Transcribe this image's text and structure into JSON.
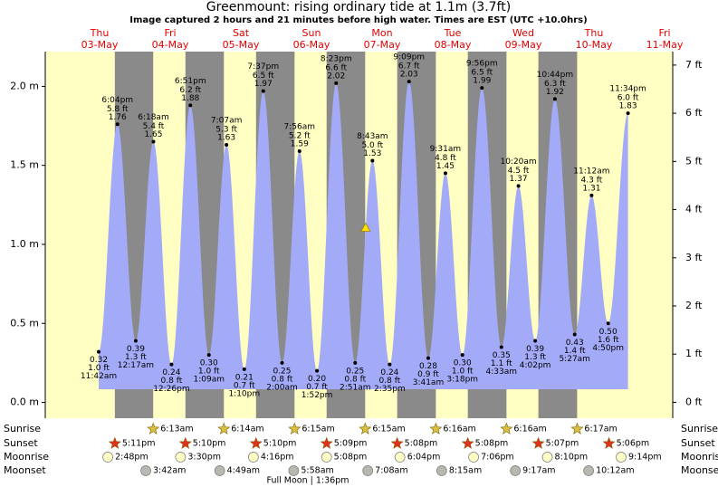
{
  "title": "Greenmount: rising  ordinary tide at 1.1m (3.7ft)",
  "subtitle": "Image captured 2 hours and 21 minutes before high water. Times are EST (UTC +10.0hrs)",
  "chart_data": {
    "type": "tide",
    "current_height_m": 1.1,
    "days": [
      {
        "weekday": "Thu",
        "date": "03-May"
      },
      {
        "weekday": "Fri",
        "date": "04-May"
      },
      {
        "weekday": "Sat",
        "date": "05-May"
      },
      {
        "weekday": "Sun",
        "date": "06-May"
      },
      {
        "weekday": "Mon",
        "date": "07-May"
      },
      {
        "weekday": "Tue",
        "date": "08-May"
      },
      {
        "weekday": "Wed",
        "date": "09-May"
      },
      {
        "weekday": "Thu",
        "date": "10-May"
      },
      {
        "weekday": "Fri",
        "date": "11-May"
      }
    ],
    "times": [
      "11:42am",
      "6:04pm",
      "12:17am",
      "6:18am",
      "12:26pm",
      "6:51pm",
      "1:09am",
      "7:07am",
      "1:10pm",
      "7:37pm",
      "2:00am",
      "7:56am",
      "1:52pm",
      "8:23pm",
      "2:51am",
      "8:43am",
      "2:35pm",
      "9:09pm",
      "3:41am",
      "9:31am",
      "3:18pm",
      "9:56pm",
      "4:33am",
      "10:20am",
      "4:02pm",
      "10:44pm",
      "5:27am",
      "11:12am",
      "4:50pm",
      "11:34pm"
    ],
    "values": [
      0.32,
      1.76,
      0.39,
      1.65,
      0.24,
      1.88,
      0.3,
      1.63,
      0.21,
      1.97,
      0.25,
      1.59,
      0.2,
      2.02,
      0.25,
      1.53,
      0.24,
      2.03,
      0.28,
      1.45,
      0.3,
      1.99,
      0.35,
      1.37,
      0.39,
      1.92,
      0.43,
      1.31,
      0.5,
      1.83
    ],
    "value_labels": [
      "0.32",
      "1.76",
      "0.39",
      "1.65",
      "0.24",
      "1.88",
      "0.30",
      "1.63",
      "0.21",
      "1.97",
      "0.25",
      "1.59",
      "0.20",
      "2.02",
      "0.25",
      "1.53",
      "0.24",
      "2.03",
      "0.28",
      "1.45",
      "0.30",
      "1.99",
      "0.35",
      "1.37",
      "0.39",
      "1.92",
      "0.43",
      "1.31",
      "0.50",
      "1.83"
    ],
    "ft_labels": [
      "1.0 ft",
      "5.8 ft",
      "1.3 ft",
      "5.4 ft",
      "0.8 ft",
      "6.2 ft",
      "1.0 ft",
      "5.3 ft",
      "0.7 ft",
      "6.5 ft",
      "0.8 ft",
      "5.2 ft",
      "0.7 ft",
      "6.6 ft",
      "0.8 ft",
      "5.0 ft",
      "0.8 ft",
      "6.7 ft",
      "0.9 ft",
      "4.8 ft",
      "1.0 ft",
      "6.5 ft",
      "1.1 ft",
      "4.5 ft",
      "1.3 ft",
      "6.3 ft",
      "1.4 ft",
      "4.3 ft",
      "1.6 ft",
      "6.0 ft"
    ],
    "ylim": [
      -0.1,
      2.22
    ],
    "yticks": [
      {
        "value": 0,
        "label": "0.0 m"
      },
      {
        "value": 0.5,
        "label": "0.5 m"
      },
      {
        "value": 1,
        "label": "1.0 m"
      },
      {
        "value": 1.5,
        "label": "1.5 m"
      },
      {
        "value": 2,
        "label": "2.0 m"
      }
    ],
    "y2lim": [
      -0.33,
      7.28
    ],
    "y2ticks": [
      {
        "value": 0,
        "label": "0 ft"
      },
      {
        "value": 1,
        "label": "1 ft"
      },
      {
        "value": 2,
        "label": "2 ft"
      },
      {
        "value": 3,
        "label": "3 ft"
      },
      {
        "value": 4,
        "label": "4 ft"
      },
      {
        "value": 5,
        "label": "5 ft"
      },
      {
        "value": 6,
        "label": "6 ft"
      },
      {
        "value": 7,
        "label": "7 ft"
      }
    ],
    "color": "#a3abf8"
  },
  "astro": {
    "row_labels": [
      "Sunrise",
      "Sunset",
      "Moonrise",
      "Moonset"
    ],
    "sunrise": [
      null,
      "6:13am",
      "6:14am",
      "6:15am",
      "6:15am",
      "6:16am",
      "6:16am",
      "6:17am",
      null
    ],
    "sunset": [
      "5:11pm",
      "5:10pm",
      "5:10pm",
      "5:09pm",
      "5:08pm",
      "5:08pm",
      "5:07pm",
      "5:06pm",
      null
    ],
    "moonrise": [
      "2:48pm",
      "3:30pm",
      "4:16pm",
      "5:08pm",
      "6:04pm",
      "7:06pm",
      "8:10pm",
      "9:14pm",
      null
    ],
    "moonset": [
      null,
      "3:42am",
      "4:49am",
      "5:58am",
      "7:08am",
      "8:15am",
      "9:17am",
      "10:12am",
      null
    ],
    "moon_phase": "Full Moon | 1:36pm"
  }
}
